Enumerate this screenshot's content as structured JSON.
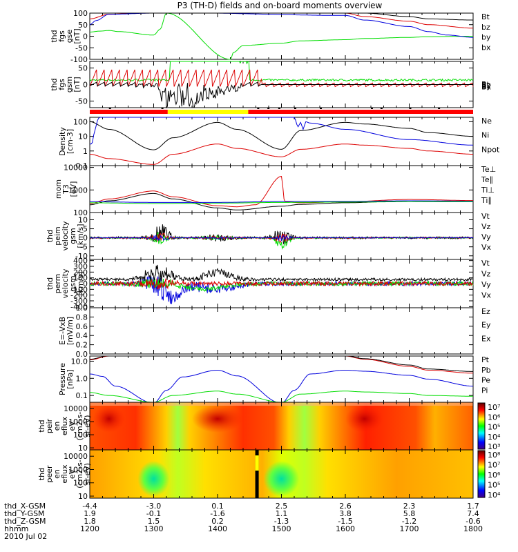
{
  "title": "P3 (TH-D) fields and on-board moments overview",
  "date_label": "2010 Jul 02",
  "colors": {
    "black": "#000000",
    "red": "#dd0000",
    "green": "#00dd00",
    "blue": "#0000dd",
    "yellow": "#ffff00",
    "bar_red": "#ff0000"
  },
  "chart_data": [
    {
      "type": "line",
      "panel": "fgs-gse",
      "ylabel": [
        "thd",
        "fgs",
        "gse",
        "[nT]"
      ],
      "ylim": [
        -100,
        100
      ],
      "yticks": [
        "100",
        "50",
        "0",
        "-50",
        "-100"
      ],
      "yticks_values": [
        100,
        50,
        0,
        -50,
        -100
      ],
      "legend": [
        "Bt",
        "bz",
        "by",
        "bx"
      ],
      "legend_colors": [
        "black",
        "red",
        "green",
        "blue"
      ],
      "series": [
        {
          "name": "bz",
          "color": "red",
          "x": [
            1200,
            1230,
            1300,
            1330,
            1400,
            1430,
            1500,
            1530,
            1600,
            1630,
            1700,
            1730,
            1800
          ],
          "y": [
            75,
            95,
            105,
            110,
            115,
            112,
            110,
            108,
            100,
            85,
            65,
            50,
            35
          ]
        },
        {
          "name": "by",
          "color": "green",
          "x": [
            1200,
            1215,
            1230,
            1245,
            1300,
            1310,
            1320,
            1420,
            1425,
            1440,
            1500,
            1530,
            1600,
            1630,
            1700,
            1730,
            1800
          ],
          "y": [
            18,
            22,
            25,
            20,
            5,
            30,
            100,
            -100,
            -70,
            -40,
            -30,
            -20,
            -15,
            -10,
            -5,
            -2,
            0
          ]
        },
        {
          "name": "bx",
          "color": "blue",
          "x": [
            1200,
            1210,
            1230,
            1300,
            1330,
            1600,
            1630,
            1700,
            1730,
            1760,
            1800
          ],
          "y": [
            50,
            68,
            95,
            100,
            102,
            90,
            70,
            42,
            20,
            5,
            -5
          ]
        },
        {
          "name": "Bt",
          "color": "black",
          "x": [
            1200,
            1400,
            1600,
            1630,
            1700,
            1730,
            1800
          ],
          "y": [
            120,
            125,
            115,
            100,
            85,
            75,
            70
          ]
        }
      ]
    },
    {
      "type": "line",
      "panel": "fgs-gsm",
      "ylabel": [
        "thd",
        "fgs",
        "gsm",
        "[nT]"
      ],
      "ylim": [
        -70,
        70
      ],
      "yticks": [
        "50",
        "0",
        "-50"
      ],
      "yticks_values": [
        50,
        0,
        -50
      ],
      "legend": [
        "Bt",
        "Bz",
        "By",
        "Bx"
      ],
      "legend_colors": [
        "black",
        "red",
        "green",
        "blue"
      ],
      "legend_overlap": true
    },
    {
      "type": "bar",
      "panel": "mode-bar",
      "segments": [
        {
          "from": 1200,
          "to": 1322,
          "color": "bar_red"
        },
        {
          "from": 1322,
          "to": 1448,
          "color": "yellow"
        },
        {
          "from": 1448,
          "to": 1800,
          "color": "bar_red"
        }
      ]
    },
    {
      "type": "line",
      "panel": "density",
      "ylabel": [
        "Density",
        "[cm-3]"
      ],
      "ylog": true,
      "ylim": [
        0.1,
        200
      ],
      "yticks": [
        "100",
        "10",
        "1",
        "0.1"
      ],
      "yticks_values": [
        100,
        10,
        1,
        0.1
      ],
      "legend": [
        "Ne",
        "Ni",
        "Npot"
      ],
      "legend_colors": [
        "red",
        "black",
        "blue"
      ],
      "series": [
        {
          "name": "Ni",
          "color": "black",
          "x": [
            1200,
            1230,
            1300,
            1330,
            1400,
            1430,
            1500,
            1530,
            1600,
            1630,
            1700,
            1730,
            1800
          ],
          "y": [
            100,
            30,
            1.2,
            8,
            90,
            30,
            1.3,
            25,
            90,
            70,
            35,
            18,
            10
          ]
        },
        {
          "name": "Ne",
          "color": "red",
          "x": [
            1200,
            1230,
            1300,
            1330,
            1400,
            1430,
            1500,
            1530,
            1600,
            1630,
            1700,
            1730,
            1800
          ],
          "y": [
            0.6,
            0.3,
            0.12,
            0.6,
            3,
            1.5,
            0.4,
            1.3,
            3,
            2.5,
            1.5,
            1,
            0.6
          ]
        },
        {
          "name": "Npot",
          "color": "blue",
          "x": [
            1200,
            1203,
            1208,
            1212,
            1215,
            1520,
            1526,
            1530,
            1534,
            1538,
            1545,
            1600,
            1700,
            1800
          ],
          "y": [
            3,
            3,
            25,
            120,
            200,
            200,
            45,
            90,
            30,
            100,
            80,
            30,
            6,
            2.5
          ]
        }
      ]
    },
    {
      "type": "line",
      "panel": "temperature",
      "ylabel": [
        "mom",
        "T3",
        "[eV]"
      ],
      "ylog": true,
      "ylim": [
        100,
        12000
      ],
      "yticks": [
        "10000",
        "1000",
        "100"
      ],
      "yticks_values": [
        10000,
        1000,
        100
      ],
      "legend": [
        "Te⊥",
        "Te∥",
        "Ti⊥",
        "Ti∥"
      ],
      "legend_colors": [
        "red",
        "black",
        "blue",
        "green"
      ],
      "series": [
        {
          "name": "Te⊥",
          "color": "red",
          "x": [
            1200,
            1230,
            1300,
            1330,
            1400,
            1430,
            1459,
            1500,
            1505,
            1530,
            1600,
            1700,
            1800
          ],
          "y": [
            250,
            400,
            900,
            500,
            200,
            180,
            220,
            4000,
            300,
            270,
            300,
            380,
            340
          ]
        },
        {
          "name": "Te∥",
          "color": "black",
          "x": [
            1200,
            1230,
            1300,
            1330,
            1400,
            1430,
            1500,
            1530,
            1600,
            1700,
            1800
          ],
          "y": [
            220,
            330,
            700,
            400,
            160,
            130,
            190,
            230,
            270,
            330,
            310
          ]
        },
        {
          "name": "Ti⊥",
          "color": "blue",
          "x": [
            1200,
            1300,
            1400,
            1500,
            1600,
            1700,
            1800
          ],
          "y": [
            300,
            280,
            280,
            310,
            310,
            330,
            320
          ]
        },
        {
          "name": "Ti∥",
          "color": "green",
          "x": [
            1200,
            1300,
            1400,
            1500,
            1600,
            1700,
            1800
          ],
          "y": [
            270,
            250,
            260,
            280,
            290,
            300,
            300
          ]
        }
      ]
    },
    {
      "type": "line",
      "panel": "peim-velocity",
      "ylabel": [
        "thd",
        "peim",
        "velocity",
        "gsm",
        "[km/s]"
      ],
      "ylim": [
        -12,
        14
      ],
      "yticks": [
        "10",
        "5",
        "0",
        "-5",
        "-10"
      ],
      "yticks_values": [
        10,
        5,
        0,
        -5,
        -10
      ],
      "legend": [
        "Vt",
        "Vz",
        "Vy",
        "Vx"
      ],
      "legend_colors": [
        "black",
        "red",
        "green",
        "blue"
      ]
    },
    {
      "type": "line",
      "panel": "perm-velocity",
      "ylabel": [
        "thd",
        "perm",
        "velocity",
        "gsm",
        "[km/s]"
      ],
      "ylim": [
        -420,
        420
      ],
      "yticks": [
        "400",
        "300",
        "200",
        "100",
        "0",
        "-100",
        "-200",
        "-300",
        "-400"
      ],
      "yticks_values": [
        400,
        300,
        200,
        100,
        0,
        -100,
        -200,
        -300,
        -400
      ],
      "legend": [
        "Vt",
        "Vz",
        "Vy",
        "Vx"
      ],
      "legend_colors": [
        "black",
        "red",
        "green",
        "blue"
      ]
    },
    {
      "type": "line",
      "panel": "efield",
      "ylabel": [
        "E=-VxB",
        "[mV/m]"
      ],
      "ylim": [
        0,
        1
      ],
      "yticks": [
        "1.0",
        "0.8",
        "0.6",
        "0.4",
        "0.2",
        "0.0"
      ],
      "yticks_values": [
        1.0,
        0.8,
        0.6,
        0.4,
        0.2,
        0.0
      ],
      "legend": [
        "Ez",
        "Ey",
        "Ex"
      ],
      "legend_colors": [
        "red",
        "green",
        "blue"
      ]
    },
    {
      "type": "line",
      "panel": "pressure",
      "ylabel": [
        "Pressure",
        "[nPa]"
      ],
      "ylog": true,
      "ylim": [
        0.04,
        20
      ],
      "yticks": [
        "10.0",
        "1.0",
        "0.1"
      ],
      "yticks_values": [
        10,
        1,
        0.1
      ],
      "legend": [
        "Pt",
        "Pb",
        "Pe",
        "Pi"
      ],
      "legend_colors": [
        "black",
        "red",
        "green",
        "blue"
      ],
      "series": [
        {
          "name": "Pi",
          "color": "blue",
          "x": [
            1200,
            1220,
            1240,
            1300,
            1320,
            1345,
            1400,
            1430,
            1500,
            1520,
            1545,
            1600,
            1630,
            1700,
            1730,
            1800
          ],
          "y": [
            1.8,
            1.3,
            0.35,
            0.035,
            0.2,
            1.2,
            3,
            1.4,
            0.035,
            0.2,
            1.8,
            3,
            2.6,
            1.5,
            0.9,
            0.35
          ]
        },
        {
          "name": "Pe",
          "color": "green",
          "x": [
            1200,
            1230,
            1300,
            1330,
            1400,
            1430,
            1500,
            1530,
            1600,
            1630,
            1700,
            1730,
            1800
          ],
          "y": [
            0.15,
            0.1,
            0.04,
            0.1,
            0.18,
            0.12,
            0.04,
            0.12,
            0.18,
            0.16,
            0.13,
            0.1,
            0.09
          ]
        },
        {
          "name": "Pb",
          "color": "red",
          "x": [
            1200,
            1230,
            1300,
            1330,
            1400,
            1430,
            1500,
            1530,
            1600,
            1630,
            1700,
            1730,
            1800
          ],
          "y": [
            12,
            20,
            25,
            25,
            25,
            25,
            25,
            22,
            20,
            13,
            5,
            3,
            2
          ]
        },
        {
          "name": "Pt",
          "color": "black",
          "x": [
            1200,
            1230,
            1300,
            1330,
            1400,
            1430,
            1500,
            1530,
            1600,
            1630,
            1700,
            1730,
            1800
          ],
          "y": [
            13,
            21,
            26,
            26,
            26,
            26,
            26,
            23,
            21,
            14,
            6,
            3.5,
            2.5
          ]
        }
      ]
    },
    {
      "type": "heatmap",
      "panel": "peir-spectrogram",
      "ylabel": [
        "thd",
        "peir",
        "en",
        "eflux",
        "eV",
        "(cm2-s-",
        "sr-eV)"
      ],
      "ylog": true,
      "yticks": [
        "10000",
        "1000",
        "100",
        "10"
      ],
      "colorbar_ticks": [
        "10⁷",
        "10⁶",
        "10⁵",
        "10⁴",
        "10³"
      ]
    },
    {
      "type": "heatmap",
      "panel": "peer-spectrogram",
      "ylabel": [
        "thd",
        "peer",
        "en",
        "eflux",
        "eV",
        "(cm2-s-",
        "sr-eV)"
      ],
      "ylog": true,
      "yticks": [
        "10000",
        "1000",
        "100",
        "10"
      ],
      "colorbar_ticks": [
        "10⁸",
        "10⁷",
        "10⁶",
        "10⁵",
        "10⁴"
      ]
    }
  ],
  "x_axis": {
    "rows": [
      {
        "label": "thd_X-GSM",
        "values": [
          "-4.4",
          "-3.0",
          "0.1",
          "2.5",
          "2.6",
          "2.3",
          "1.7"
        ]
      },
      {
        "label": "thd_Y-GSM",
        "values": [
          "1.9",
          "-0.1",
          "-1.6",
          "1.1",
          "3.8",
          "5.8",
          "7.4"
        ]
      },
      {
        "label": "thd_Z-GSM",
        "values": [
          "1.8",
          "1.5",
          "0.2",
          "-1.3",
          "-1.5",
          "-1.2",
          "-0.6"
        ]
      },
      {
        "label": "hhmm",
        "values": [
          "1200",
          "1300",
          "1400",
          "1500",
          "1600",
          "1700",
          "1800"
        ]
      }
    ]
  }
}
